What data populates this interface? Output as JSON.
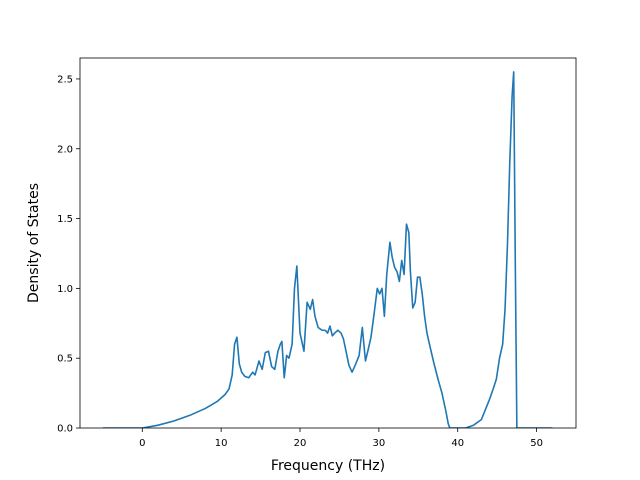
{
  "chart_data": {
    "type": "line",
    "title": "",
    "xlabel": "Frequency (THz)",
    "ylabel": "Density of States",
    "xlim": [
      -7.9,
      55.0
    ],
    "ylim": [
      0,
      2.65
    ],
    "grid": false,
    "legend": null,
    "line_color": "#1f77b4",
    "x_ticks": [
      0,
      10,
      20,
      30,
      40,
      50
    ],
    "y_ticks": [
      0.0,
      0.5,
      1.0,
      1.5,
      2.0,
      2.5
    ],
    "x_tick_labels": [
      "0",
      "10",
      "20",
      "30",
      "40",
      "50"
    ],
    "y_tick_labels": [
      "0.0",
      "0.5",
      "1.0",
      "1.5",
      "2.0",
      "2.5"
    ],
    "series": [
      {
        "x": [
          -5.0,
          0.0,
          2.0,
          4.0,
          6.0,
          8.0,
          9.5,
          10.5,
          11.0,
          11.4,
          11.7,
          12.0,
          12.3,
          12.6,
          13.0,
          13.5,
          14.0,
          14.3,
          14.6,
          14.8,
          15.2,
          15.6,
          16.0,
          16.4,
          16.8,
          17.2,
          17.5,
          17.7,
          18.0,
          18.3,
          18.6,
          19.0,
          19.3,
          19.6,
          20.0,
          20.5,
          20.9,
          21.3,
          21.6,
          21.9,
          22.3,
          22.8,
          23.2,
          23.5,
          23.8,
          24.1,
          24.4,
          24.8,
          25.2,
          25.5,
          25.8,
          26.2,
          26.6,
          27.0,
          27.5,
          27.9,
          28.3,
          28.6,
          29.0,
          29.4,
          29.8,
          30.1,
          30.4,
          30.7,
          31.0,
          31.4,
          31.7,
          32.0,
          32.3,
          32.6,
          32.9,
          33.2,
          33.5,
          33.8,
          34.0,
          34.3,
          34.6,
          34.9,
          35.2,
          35.5,
          35.8,
          36.1,
          36.5,
          37.0,
          37.5,
          38.0,
          38.5,
          38.8,
          39.0,
          40.0,
          41.0,
          42.0,
          43.0,
          43.5,
          44.0,
          44.5,
          44.9,
          45.3,
          45.7,
          46.0,
          46.3,
          46.6,
          46.9,
          47.1,
          47.3,
          47.5,
          48.0,
          52.0
        ],
        "y": [
          0.0,
          0.0,
          0.02,
          0.05,
          0.09,
          0.14,
          0.19,
          0.24,
          0.28,
          0.38,
          0.6,
          0.65,
          0.46,
          0.4,
          0.37,
          0.36,
          0.4,
          0.38,
          0.44,
          0.48,
          0.42,
          0.54,
          0.55,
          0.44,
          0.42,
          0.55,
          0.6,
          0.62,
          0.36,
          0.52,
          0.5,
          0.6,
          1.0,
          1.16,
          0.68,
          0.55,
          0.9,
          0.85,
          0.92,
          0.8,
          0.72,
          0.7,
          0.7,
          0.68,
          0.73,
          0.66,
          0.68,
          0.7,
          0.68,
          0.64,
          0.56,
          0.45,
          0.4,
          0.45,
          0.52,
          0.72,
          0.48,
          0.55,
          0.65,
          0.82,
          1.0,
          0.96,
          1.0,
          0.8,
          1.1,
          1.33,
          1.22,
          1.15,
          1.12,
          1.05,
          1.2,
          1.1,
          1.46,
          1.4,
          1.12,
          0.86,
          0.9,
          1.08,
          1.08,
          0.96,
          0.8,
          0.68,
          0.58,
          0.46,
          0.35,
          0.25,
          0.12,
          0.03,
          0.0,
          0.0,
          0.0,
          0.02,
          0.06,
          0.13,
          0.2,
          0.28,
          0.35,
          0.5,
          0.6,
          0.85,
          1.3,
          1.9,
          2.38,
          2.55,
          1.2,
          0.0,
          0.0,
          0.0
        ]
      }
    ]
  }
}
